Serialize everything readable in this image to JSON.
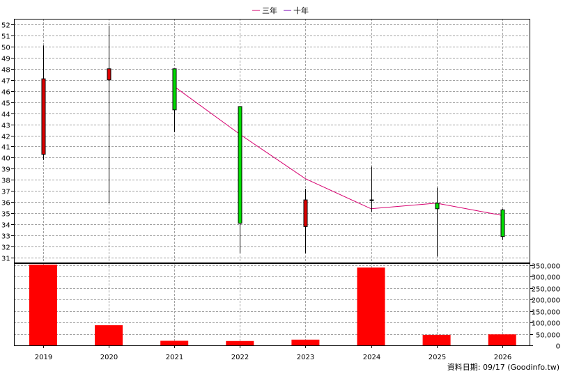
{
  "legend": {
    "items": [
      {
        "label": "三年",
        "color": "#d6006f"
      },
      {
        "label": "十年",
        "color": "#7a00b4"
      }
    ]
  },
  "footer": {
    "text": "資料日期: 09/17 (Goodinfo.tw)"
  },
  "colors": {
    "up": "#00dd00",
    "down": "#dd0000",
    "volume": "#ff0000",
    "grid": "#a0a0a0",
    "line_3y": "#d6006f"
  },
  "chart_data": [
    {
      "type": "candlestick",
      "categories": [
        "2019",
        "2020",
        "2021",
        "2022",
        "2023",
        "2024",
        "2025",
        "2026"
      ],
      "ylim": [
        30.5,
        52.5
      ],
      "yticks": [
        31,
        32,
        33,
        34,
        35,
        36,
        37,
        38,
        39,
        40,
        41,
        42,
        43,
        44,
        45,
        46,
        47,
        48,
        49,
        50,
        51,
        52
      ],
      "grid": true,
      "candles": [
        {
          "x": "2019",
          "open": 40.3,
          "high": 50.1,
          "low": 39.8,
          "close": 47.1
        },
        {
          "x": "2020",
          "open": 47.0,
          "high": 51.9,
          "low": 35.9,
          "close": 48.0
        },
        {
          "x": "2021",
          "open": 48.0,
          "high": 48.0,
          "low": 42.3,
          "close": 44.3
        },
        {
          "x": "2022",
          "open": 44.6,
          "high": 44.6,
          "low": 31.4,
          "close": 34.1
        },
        {
          "x": "2023",
          "open": 33.8,
          "high": 37.2,
          "low": 31.4,
          "close": 36.2
        },
        {
          "x": "2024",
          "open": 36.2,
          "high": 39.2,
          "low": 35.1,
          "close": 36.2
        },
        {
          "x": "2025",
          "open": 35.9,
          "high": 37.3,
          "low": 31.1,
          "close": 35.4
        },
        {
          "x": "2026",
          "open": 35.3,
          "high": 35.4,
          "low": 32.6,
          "close": 32.9
        }
      ],
      "series": [
        {
          "name": "三年",
          "x": [
            "2021",
            "2022",
            "2023",
            "2024",
            "2025",
            "2026"
          ],
          "values": [
            46.4,
            42.1,
            38.1,
            35.4,
            35.9,
            34.8
          ]
        }
      ]
    },
    {
      "type": "bar",
      "categories": [
        "2019",
        "2020",
        "2021",
        "2022",
        "2023",
        "2024",
        "2025",
        "2026"
      ],
      "values": [
        353000,
        88000,
        20000,
        19000,
        25000,
        340000,
        46000,
        48000
      ],
      "ylim": [
        0,
        350000
      ],
      "yticks": [
        0,
        50000,
        100000,
        150000,
        200000,
        250000,
        300000,
        350000
      ],
      "ytick_labels": [
        "0",
        "50,000",
        "100,000",
        "150,000",
        "200,000",
        "250,000",
        "300,000",
        "350,000"
      ],
      "grid": true
    }
  ]
}
